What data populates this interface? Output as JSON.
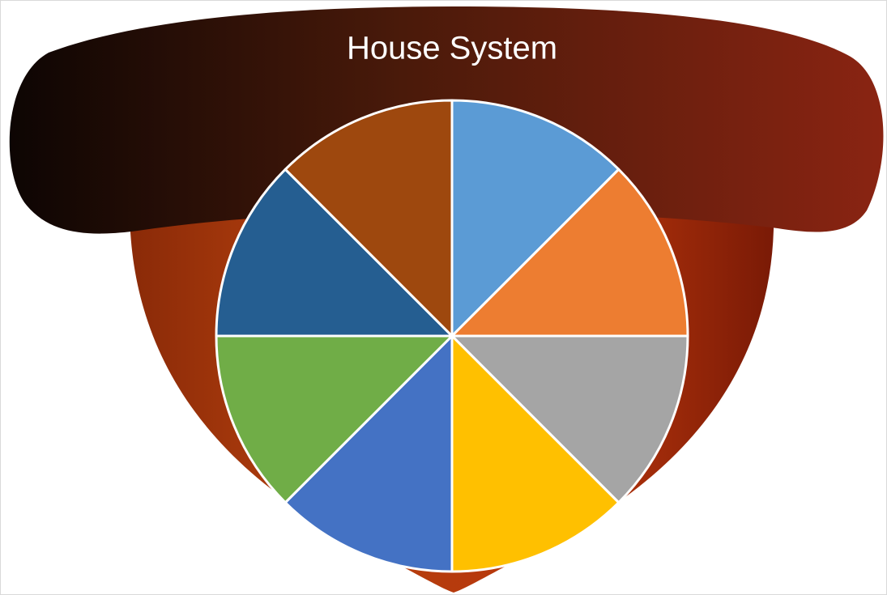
{
  "chart_data": {
    "type": "pie",
    "title": "House System",
    "values": [
      12.5,
      12.5,
      12.5,
      12.5,
      12.5,
      12.5,
      12.5,
      12.5
    ],
    "colors": [
      "#5b9bd5",
      "#ed7d31",
      "#a5a5a5",
      "#ffc000",
      "#4472c4",
      "#70ad47",
      "#255e91",
      "#9e480e"
    ]
  }
}
